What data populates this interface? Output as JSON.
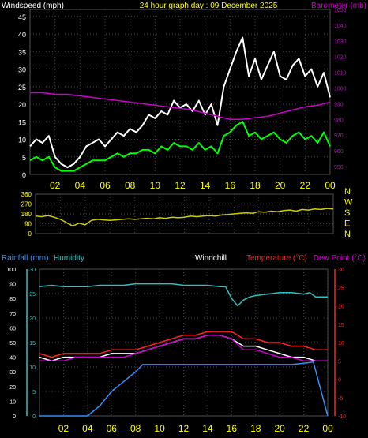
{
  "chart_data": [
    {
      "type": "line",
      "title": "24 hour graph day : 09 December 2025",
      "ylabel": "Windspeed (mph)",
      "y2label": "Barometer (mb)",
      "x_ticks": [
        "02",
        "04",
        "06",
        "08",
        "10",
        "12",
        "14",
        "16",
        "18",
        "20",
        "22",
        "00"
      ],
      "ylim": [
        0,
        47
      ],
      "y_ticks": [
        0,
        5,
        10,
        15,
        20,
        25,
        30,
        35,
        40,
        45
      ],
      "y2lim": [
        945,
        1050
      ],
      "y2_ticks": [
        950,
        960,
        970,
        980,
        990,
        1000,
        1010,
        1020,
        1030,
        1040,
        1050
      ],
      "grid": true,
      "colors": {
        "gust": "#ffffff",
        "average": "#00ff00",
        "barometer": "#cc00cc"
      },
      "series": [
        {
          "role": "gust",
          "x": [
            0,
            0.5,
            1,
            1.5,
            2,
            2.5,
            3,
            3.5,
            4,
            4.5,
            5,
            5.5,
            6,
            6.5,
            7,
            7.5,
            8,
            8.5,
            9,
            9.5,
            10,
            10.5,
            11,
            11.5,
            12,
            12.5,
            13,
            13.5,
            14,
            14.5,
            15,
            15.5,
            16,
            16.5,
            17,
            17.5,
            18,
            18.5,
            19,
            19.5,
            20,
            20.5,
            21,
            21.5,
            22,
            22.5,
            23,
            23.5,
            24
          ],
          "values": [
            8,
            10,
            9,
            11,
            5,
            3,
            2,
            3,
            5,
            8,
            9,
            10,
            8,
            10,
            12,
            11,
            13,
            12,
            14,
            17,
            16,
            18,
            17,
            21,
            19,
            20,
            18,
            21,
            17,
            20,
            14,
            25,
            30,
            35,
            39,
            28,
            33,
            27,
            31,
            35,
            28,
            27,
            31,
            33,
            28,
            30,
            25,
            29,
            22
          ]
        },
        {
          "role": "average",
          "x": [
            0,
            0.5,
            1,
            1.5,
            2,
            2.5,
            3,
            3.5,
            4,
            4.5,
            5,
            5.5,
            6,
            6.5,
            7,
            7.5,
            8,
            8.5,
            9,
            9.5,
            10,
            10.5,
            11,
            11.5,
            12,
            12.5,
            13,
            13.5,
            14,
            14.5,
            15,
            15.5,
            16,
            16.5,
            17,
            17.5,
            18,
            18.5,
            19,
            19.5,
            20,
            20.5,
            21,
            21.5,
            22,
            22.5,
            23,
            23.5,
            24
          ],
          "values": [
            4,
            5,
            4,
            5,
            2,
            1,
            1,
            1,
            2,
            3,
            4,
            4,
            4,
            5,
            6,
            5,
            6,
            6,
            7,
            7,
            6,
            8,
            7,
            9,
            8,
            8,
            7,
            9,
            7,
            8,
            6,
            11,
            12,
            14,
            15,
            11,
            12,
            10,
            11,
            12,
            10,
            9,
            11,
            12,
            10,
            11,
            9,
            12,
            8
          ]
        },
        {
          "role": "barometer",
          "x": [
            0,
            1,
            2,
            3,
            4,
            5,
            6,
            7,
            8,
            9,
            10,
            11,
            12,
            13,
            14,
            15,
            16,
            17,
            18,
            19,
            20,
            21,
            22,
            23,
            24
          ],
          "values": [
            997,
            997,
            996,
            996,
            995,
            994,
            993,
            992,
            991,
            990,
            989,
            988,
            987,
            986,
            984,
            982,
            980,
            980,
            981,
            982,
            984,
            986,
            988,
            989,
            991
          ]
        }
      ]
    },
    {
      "type": "line",
      "x_ticks": [
        "02",
        "04",
        "06",
        "08",
        "10",
        "12",
        "14",
        "16",
        "18",
        "20",
        "22",
        "00"
      ],
      "ylim": [
        0,
        360
      ],
      "y_ticks": [
        0,
        90,
        180,
        270,
        360
      ],
      "compass_labels": [
        "N",
        "W",
        "S",
        "E",
        "N"
      ],
      "grid": true,
      "colors": {
        "direction": "#cccc00"
      },
      "series": [
        {
          "role": "wind-direction",
          "x": [
            0,
            0.5,
            1,
            1.5,
            2,
            2.5,
            3,
            3.5,
            4,
            4.5,
            5,
            5.5,
            6,
            6.5,
            7,
            7.5,
            8,
            8.5,
            9,
            9.5,
            10,
            10.5,
            11,
            11.5,
            12,
            12.5,
            13,
            13.5,
            14,
            14.5,
            15,
            15.5,
            16,
            16.5,
            17,
            17.5,
            18,
            18.5,
            19,
            19.5,
            20,
            20.5,
            21,
            21.5,
            22,
            22.5,
            23,
            23.5,
            24
          ],
          "values": [
            160,
            155,
            165,
            150,
            130,
            100,
            70,
            95,
            80,
            120,
            130,
            125,
            120,
            125,
            130,
            135,
            130,
            135,
            140,
            135,
            145,
            140,
            150,
            145,
            150,
            160,
            155,
            160,
            165,
            160,
            170,
            175,
            180,
            185,
            190,
            185,
            200,
            195,
            205,
            200,
            210,
            215,
            205,
            220,
            215,
            225,
            220,
            230,
            225
          ]
        }
      ]
    },
    {
      "type": "line",
      "legend": [
        "Rainfall (mm)",
        "Humidity",
        "Windchill",
        "Temperature (°C)",
        "Dew Point (°C)"
      ],
      "x_ticks": [
        "02",
        "04",
        "06",
        "08",
        "10",
        "12",
        "14",
        "16",
        "18",
        "20",
        "22",
        "00"
      ],
      "ylim": [
        0,
        30
      ],
      "y_ticks": [
        0,
        5,
        10,
        15,
        20,
        25,
        30
      ],
      "humidity_ticks": [
        0,
        10,
        20,
        30,
        40,
        50,
        60,
        70,
        80,
        90,
        100
      ],
      "temp_ticks": [
        -10,
        -5,
        0,
        5,
        10,
        15,
        20,
        25,
        30
      ],
      "grid": true,
      "colors": {
        "rainfall": "#3a8ef6",
        "humidity": "#30c0c0",
        "windchill": "#ffffff",
        "temperature": "#ff2020",
        "dewpoint": "#cc00cc"
      },
      "series": [
        {
          "role": "humidity",
          "x": [
            0,
            1,
            2,
            3,
            4,
            5,
            6,
            7,
            8,
            9,
            10,
            11,
            12,
            13,
            14,
            15,
            15.5,
            16,
            16.5,
            17,
            17.5,
            18,
            19,
            20,
            21,
            22,
            22.5,
            23,
            24
          ],
          "values": [
            88,
            89,
            88,
            88,
            88,
            89,
            89,
            89,
            90,
            90,
            90,
            90,
            89,
            89,
            89,
            88,
            88,
            80,
            75,
            79,
            81,
            82,
            83,
            84,
            84,
            83,
            84,
            81,
            81
          ]
        },
        {
          "role": "windchill",
          "x": [
            0,
            1,
            2,
            3,
            4,
            5,
            6,
            7,
            8,
            9,
            10,
            11,
            12,
            13,
            14,
            15,
            16,
            17,
            18,
            19,
            20,
            21,
            22,
            23,
            24
          ],
          "values": [
            6,
            5,
            6,
            6,
            6,
            6,
            7,
            7,
            7,
            8,
            9,
            10,
            11,
            11,
            12,
            12,
            11,
            9,
            9,
            8,
            7,
            6,
            6,
            5,
            5
          ]
        },
        {
          "role": "temperature",
          "x": [
            0,
            1,
            2,
            3,
            4,
            5,
            6,
            7,
            8,
            9,
            10,
            11,
            12,
            13,
            14,
            15,
            16,
            17,
            18,
            19,
            20,
            21,
            22,
            23,
            24
          ],
          "values": [
            7,
            6,
            7,
            7,
            7,
            7,
            8,
            8,
            8,
            9,
            10,
            11,
            12,
            12,
            13,
            13,
            13,
            11,
            11,
            10,
            10,
            9,
            9,
            8,
            8
          ]
        },
        {
          "role": "dewpoint",
          "x": [
            0,
            1,
            2,
            3,
            4,
            5,
            6,
            7,
            8,
            9,
            10,
            11,
            12,
            13,
            14,
            15,
            16,
            17,
            18,
            19,
            20,
            21,
            22,
            23,
            24
          ],
          "values": [
            5,
            5,
            5,
            6,
            6,
            6,
            6,
            6,
            7,
            8,
            9,
            10,
            11,
            11,
            12,
            12,
            11,
            8,
            8,
            7,
            6,
            6,
            5,
            5,
            5
          ]
        },
        {
          "role": "rainfall",
          "x": [
            0,
            4,
            5,
            6,
            7,
            8,
            8.6,
            9,
            12,
            15,
            18,
            21,
            22.8,
            24
          ],
          "values": [
            0,
            0,
            2,
            5,
            7,
            9,
            10.5,
            10.5,
            10.5,
            10.5,
            10.5,
            10.5,
            11,
            0
          ]
        }
      ]
    }
  ]
}
